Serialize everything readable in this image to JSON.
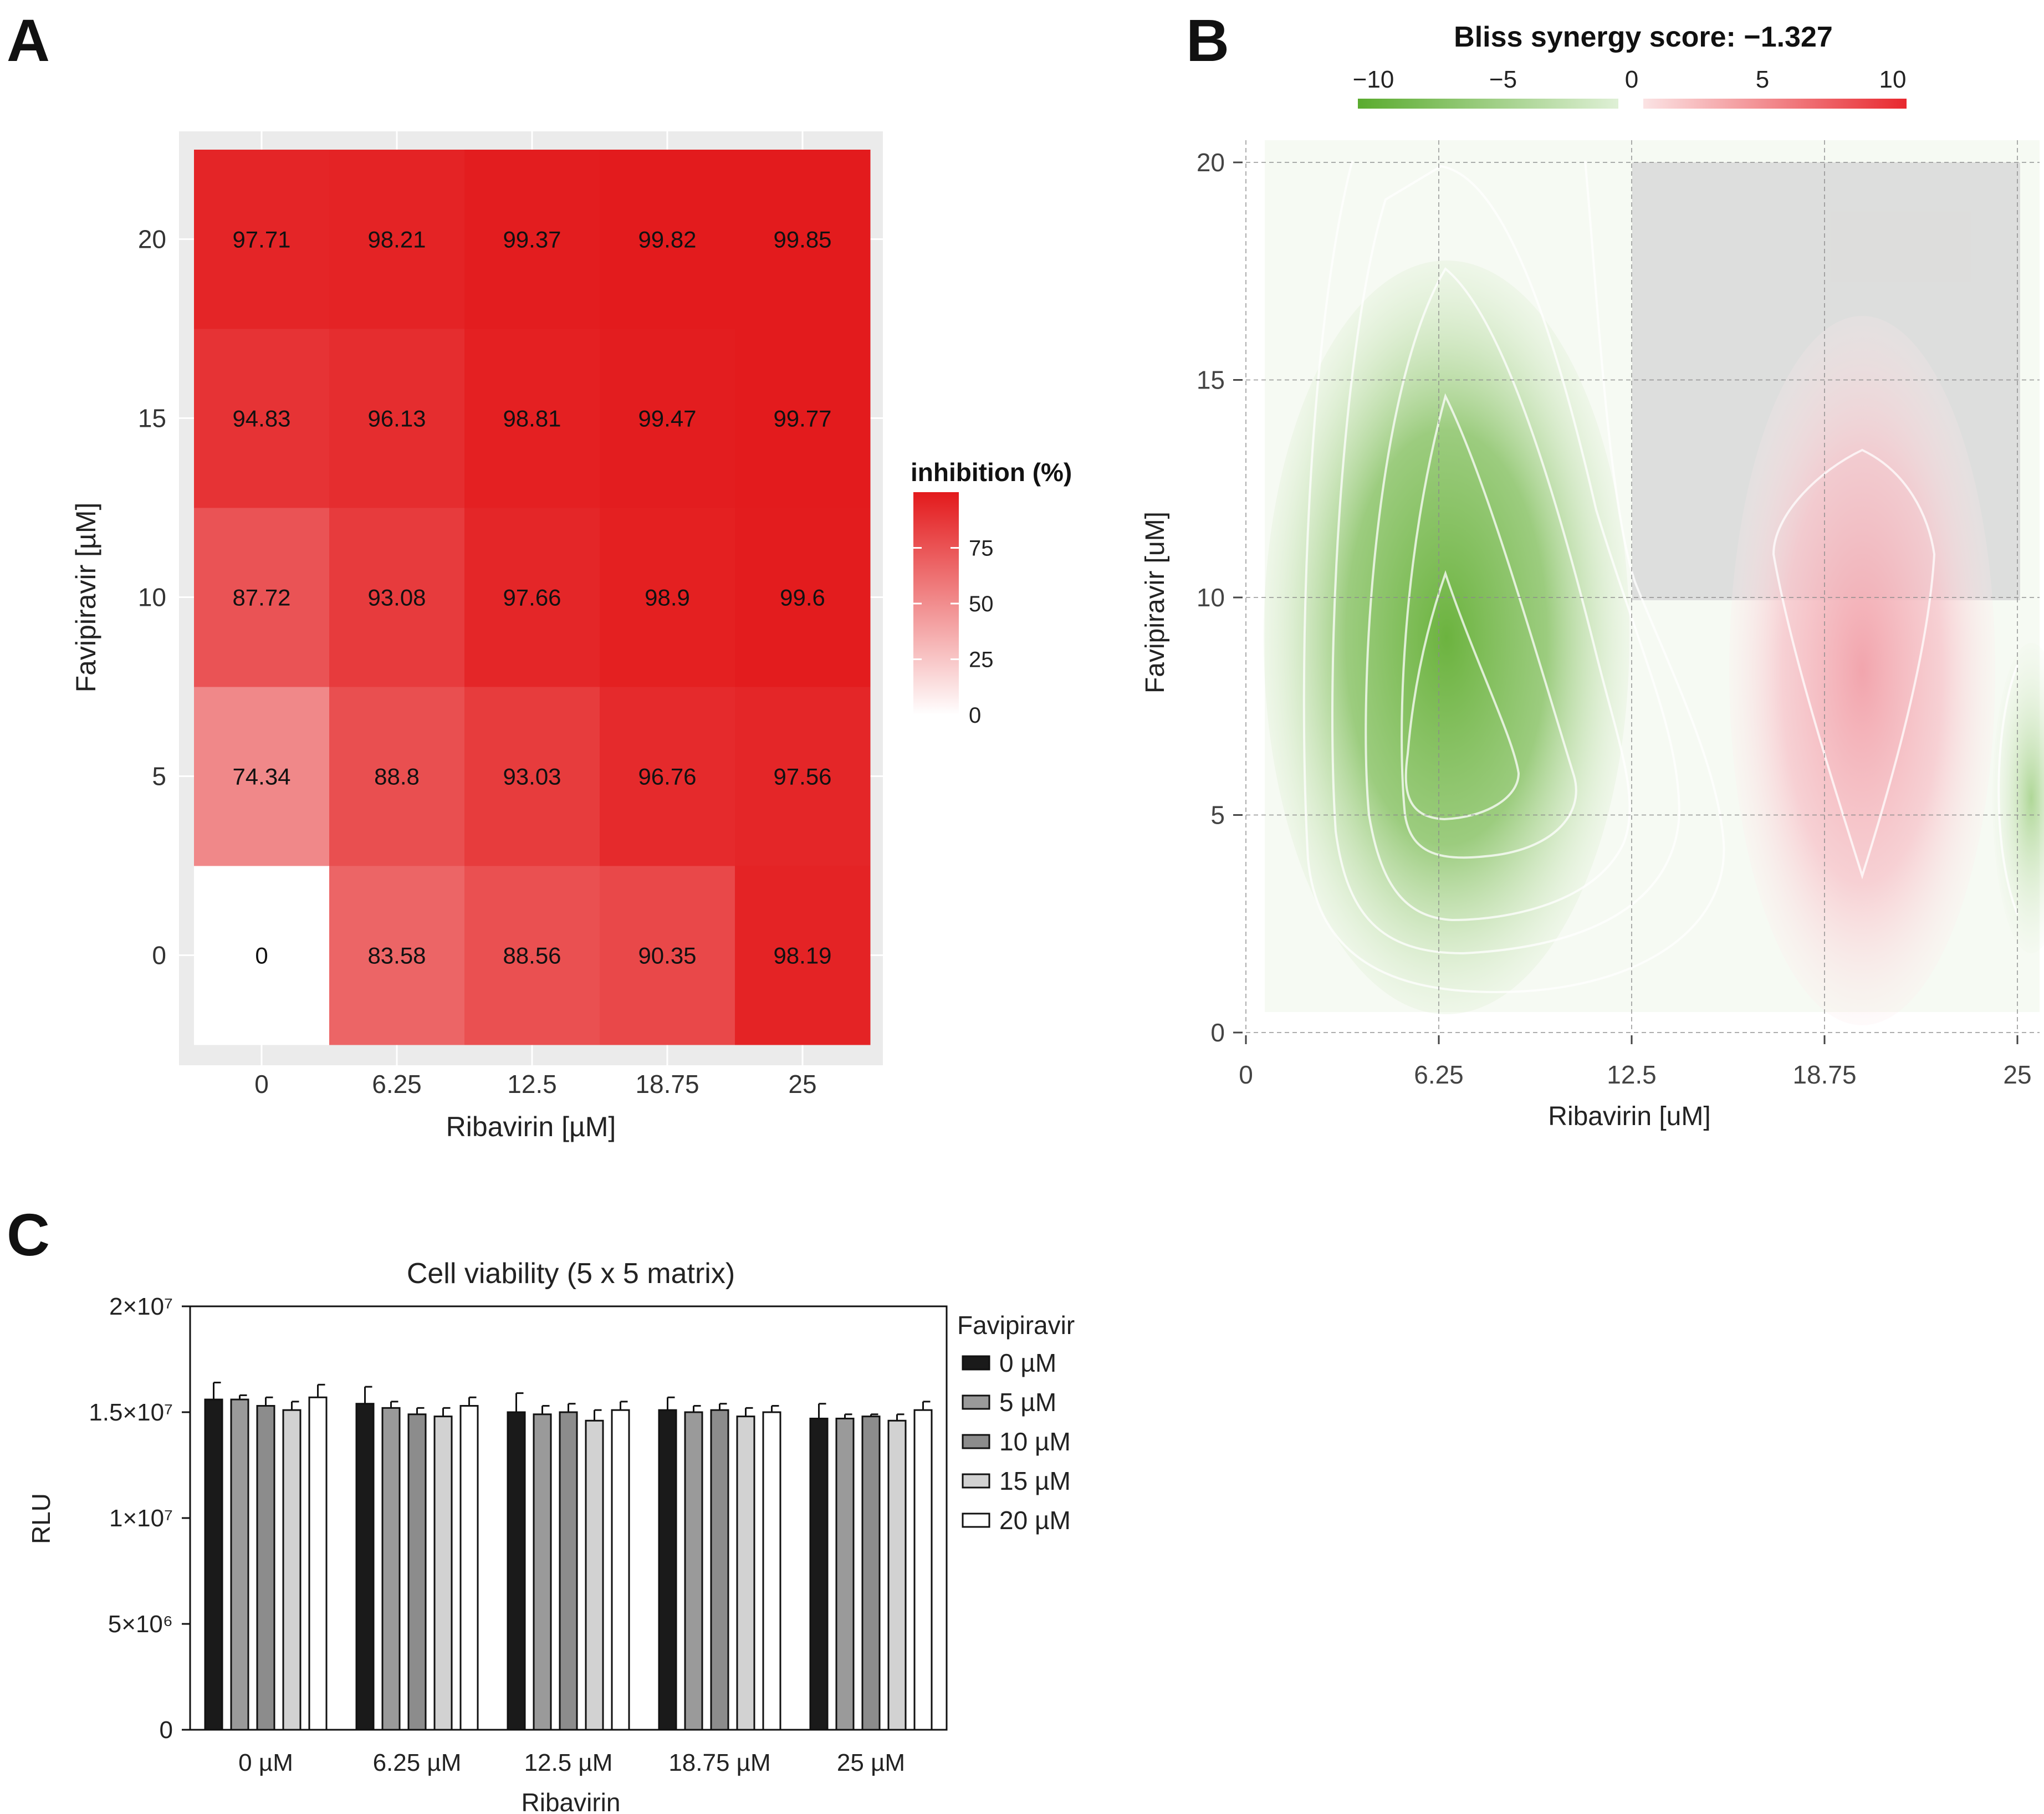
{
  "panels": {
    "a": "A",
    "b": "B",
    "c": "C"
  },
  "colors": {
    "inhibition_high": "#e31a1c",
    "inhibition_low": "#ffffff",
    "synergy_neg": "#5aab2e",
    "synergy_pos": "#e8282e",
    "panel_bg": "#ebebeb",
    "bar_0": "#1a1a1a",
    "bar_5": "#9a9a9a",
    "bar_10": "#8c8c8c",
    "bar_15": "#d2d2d2",
    "bar_20": "#ffffff"
  },
  "chart_data": [
    {
      "panel": "A",
      "type": "heatmap",
      "title": "",
      "xlabel": "Ribavirin [µM]",
      "ylabel": "Favipiravir [µM]",
      "x_categories": [
        "0",
        "6.25",
        "12.5",
        "18.75",
        "25"
      ],
      "y_categories": [
        "0",
        "5",
        "10",
        "15",
        "20"
      ],
      "values": [
        [
          0,
          83.58,
          88.56,
          90.35,
          98.19
        ],
        [
          74.34,
          88.8,
          93.03,
          96.76,
          97.56
        ],
        [
          87.72,
          93.08,
          97.66,
          98.9,
          99.6
        ],
        [
          94.83,
          96.13,
          98.81,
          99.47,
          99.77
        ],
        [
          97.71,
          98.21,
          99.37,
          99.82,
          99.85
        ]
      ],
      "value_labels": [
        [
          "0",
          "83.58",
          "88.56",
          "90.35",
          "98.19"
        ],
        [
          "74.34",
          "88.8",
          "93.03",
          "96.76",
          "97.56"
        ],
        [
          "87.72",
          "93.08",
          "97.66",
          "98.9",
          "99.6"
        ],
        [
          "94.83",
          "96.13",
          "98.81",
          "99.47",
          "99.77"
        ],
        [
          "97.71",
          "98.21",
          "99.37",
          "99.82",
          "99.85"
        ]
      ],
      "legend_title": "inhibition (%)",
      "legend_ticks": [
        "0",
        "25",
        "50",
        "75"
      ],
      "legend_range": [
        0,
        100
      ]
    },
    {
      "panel": "B",
      "type": "heatmap",
      "title": "Bliss synergy score: −1.327",
      "xlabel": "Ribavirin [uM]",
      "ylabel": "Favipiravir [uM]",
      "x_ticks": [
        "0",
        "6.25",
        "12.5",
        "18.75",
        "25"
      ],
      "y_ticks": [
        "0",
        "5",
        "10",
        "15",
        "20"
      ],
      "x_range": [
        0,
        25
      ],
      "y_range": [
        0,
        20
      ],
      "colorbar_ticks": [
        "−10",
        "−5",
        "0",
        "5",
        "10"
      ],
      "colorbar_range": [
        -10,
        10
      ],
      "contour_levels": [
        -1,
        -3,
        -5,
        -7,
        -9,
        3
      ],
      "regions": [
        {
          "description": "green synergy minimum",
          "x": 6.5,
          "y": 7,
          "value": -10
        },
        {
          "description": "red synergy maximum",
          "x": 19,
          "y": 9,
          "value": 6
        },
        {
          "description": "gray masked area",
          "x_range": [
            12.5,
            25
          ],
          "y_range": [
            10,
            20
          ]
        }
      ]
    },
    {
      "panel": "C",
      "type": "bar",
      "title": "Cell viability (5 x 5 matrix)",
      "xlabel": "Ribavirin",
      "ylabel": "RLU",
      "categories": [
        "0 µM",
        "6.25 µM",
        "12.5 µM",
        "18.75 µM",
        "25 µM"
      ],
      "ylim": [
        0,
        20000000
      ],
      "y_ticks": [
        "0",
        "5×10⁶",
        "1×10⁷",
        "1.5×10⁷",
        "2×10⁷"
      ],
      "legend_title": "Favipiravir",
      "series": [
        {
          "name": "0 µM",
          "values": [
            15600000,
            15400000,
            15000000,
            15100000,
            14700000
          ],
          "errors": [
            800000,
            800000,
            900000,
            600000,
            700000
          ]
        },
        {
          "name": "5 µM",
          "values": [
            15600000,
            15200000,
            14900000,
            15000000,
            14700000
          ],
          "errors": [
            200000,
            300000,
            400000,
            300000,
            200000
          ]
        },
        {
          "name": "10 µM",
          "values": [
            15300000,
            14900000,
            15000000,
            15100000,
            14800000
          ],
          "errors": [
            400000,
            300000,
            400000,
            300000,
            100000
          ]
        },
        {
          "name": "15 µM",
          "values": [
            15100000,
            14800000,
            14600000,
            14800000,
            14600000
          ],
          "errors": [
            400000,
            400000,
            500000,
            400000,
            300000
          ]
        },
        {
          "name": "20 µM",
          "values": [
            15700000,
            15300000,
            15100000,
            15000000,
            15100000
          ],
          "errors": [
            600000,
            400000,
            400000,
            300000,
            400000
          ]
        }
      ]
    }
  ]
}
